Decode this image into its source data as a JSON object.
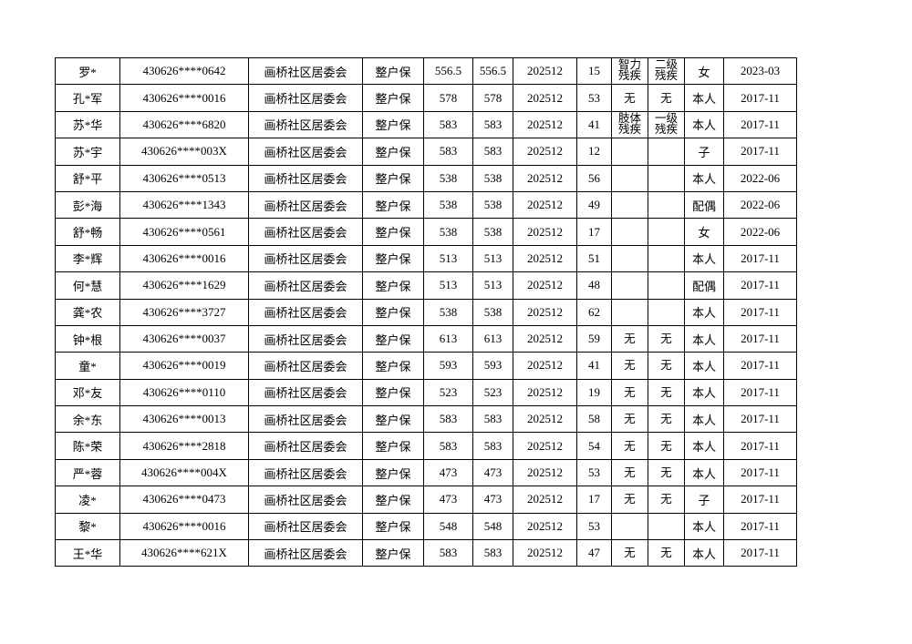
{
  "table": {
    "rows": [
      [
        "罗*",
        "430626****0642",
        "画桥社区居委会",
        "整户保",
        "556.5",
        "556.5",
        "202512",
        "15",
        "智力残疾",
        "二级残疾",
        "女",
        "2023-03"
      ],
      [
        "孔*军",
        "430626****0016",
        "画桥社区居委会",
        "整户保",
        "578",
        "578",
        "202512",
        "53",
        "无",
        "无",
        "本人",
        "2017-11"
      ],
      [
        "苏*华",
        "430626****6820",
        "画桥社区居委会",
        "整户保",
        "583",
        "583",
        "202512",
        "41",
        "肢体残疾",
        "一级残疾",
        "本人",
        "2017-11"
      ],
      [
        "苏*宇",
        "430626****003X",
        "画桥社区居委会",
        "整户保",
        "583",
        "583",
        "202512",
        "12",
        null,
        null,
        "子",
        "2017-11"
      ],
      [
        "舒*平",
        "430626****0513",
        "画桥社区居委会",
        "整户保",
        "538",
        "538",
        "202512",
        "56",
        null,
        null,
        "本人",
        "2022-06"
      ],
      [
        "彭*海",
        "430626****1343",
        "画桥社区居委会",
        "整户保",
        "538",
        "538",
        "202512",
        "49",
        null,
        null,
        "配偶",
        "2022-06"
      ],
      [
        "舒*畅",
        "430626****0561",
        "画桥社区居委会",
        "整户保",
        "538",
        "538",
        "202512",
        "17",
        null,
        null,
        "女",
        "2022-06"
      ],
      [
        "李*辉",
        "430626****0016",
        "画桥社区居委会",
        "整户保",
        "513",
        "513",
        "202512",
        "51",
        null,
        null,
        "本人",
        "2017-11"
      ],
      [
        "何*慧",
        "430626****1629",
        "画桥社区居委会",
        "整户保",
        "513",
        "513",
        "202512",
        "48",
        null,
        null,
        "配偶",
        "2017-11"
      ],
      [
        "龚*农",
        "430626****3727",
        "画桥社区居委会",
        "整户保",
        "538",
        "538",
        "202512",
        "62",
        null,
        null,
        "本人",
        "2017-11"
      ],
      [
        "钟*根",
        "430626****0037",
        "画桥社区居委会",
        "整户保",
        "613",
        "613",
        "202512",
        "59",
        "无",
        "无",
        "本人",
        "2017-11"
      ],
      [
        "童*",
        "430626****0019",
        "画桥社区居委会",
        "整户保",
        "593",
        "593",
        "202512",
        "41",
        "无",
        "无",
        "本人",
        "2017-11"
      ],
      [
        "邓*友",
        "430626****0110",
        "画桥社区居委会",
        "整户保",
        "523",
        "523",
        "202512",
        "19",
        "无",
        "无",
        "本人",
        "2017-11"
      ],
      [
        "余*东",
        "430626****0013",
        "画桥社区居委会",
        "整户保",
        "583",
        "583",
        "202512",
        "58",
        "无",
        "无",
        "本人",
        "2017-11"
      ],
      [
        "陈*荣",
        "430626****2818",
        "画桥社区居委会",
        "整户保",
        "583",
        "583",
        "202512",
        "54",
        "无",
        "无",
        "本人",
        "2017-11"
      ],
      [
        "严*蓉",
        "430626****004X",
        "画桥社区居委会",
        "整户保",
        "473",
        "473",
        "202512",
        "53",
        "无",
        "无",
        "本人",
        "2017-11"
      ],
      [
        "凌*",
        "430626****0473",
        "画桥社区居委会",
        "整户保",
        "473",
        "473",
        "202512",
        "17",
        "无",
        "无",
        "子",
        "2017-11"
      ],
      [
        "黎*",
        "430626****0016",
        "画桥社区居委会",
        "整户保",
        "548",
        "548",
        "202512",
        "53",
        null,
        null,
        "本人",
        "2017-11"
      ],
      [
        "王*华",
        "430626****621X",
        "画桥社区居委会",
        "整户保",
        "583",
        "583",
        "202512",
        "47",
        "无",
        "无",
        "本人",
        "2017-11"
      ]
    ]
  }
}
